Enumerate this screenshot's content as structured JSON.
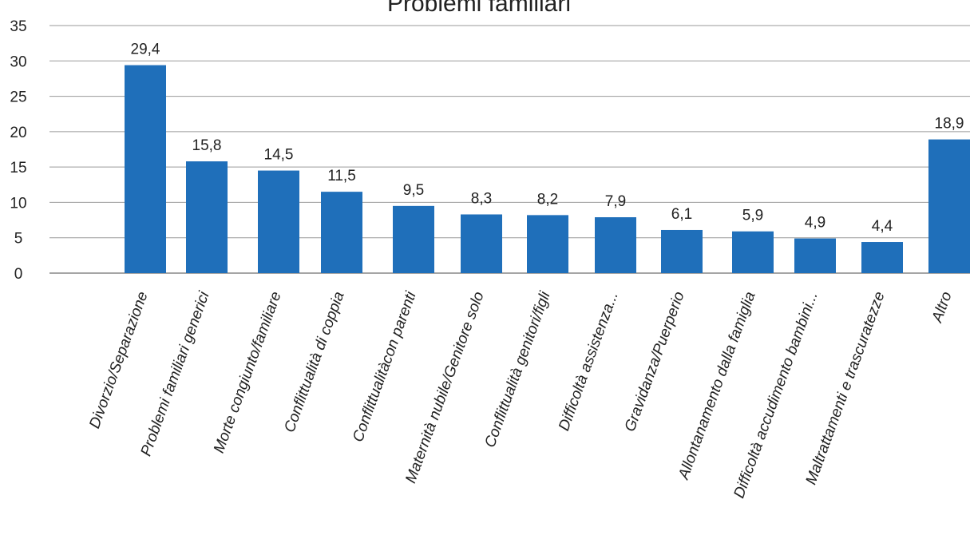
{
  "chart_data": {
    "type": "bar",
    "title": "Problemi familiari",
    "categories": [
      "Divorzio/Separazione",
      "Problemi familiari generici",
      "Morte congiunto/familiare",
      "Conflittualità di coppia",
      "Conflittualitàcon parenti",
      "Maternità nubile/Genitore solo",
      "Conflittualità genitori/figli",
      "Difficoltà assistenza...",
      "Gravidanza/Puerperio",
      "Allontanamento dalla famiglia",
      "Difficoltà accudimento bambini...",
      "Maltrattamenti e trascuratezze",
      "Altro"
    ],
    "values": [
      29.4,
      15.8,
      14.5,
      11.5,
      9.5,
      8.3,
      8.2,
      7.9,
      6.1,
      5.9,
      4.9,
      4.4,
      18.9
    ],
    "value_labels": [
      "29,4",
      "15,8",
      "14,5",
      "11,5",
      "9,5",
      "8,3",
      "8,2",
      "7,9",
      "6,1",
      "5,9",
      "4,9",
      "4,4",
      "18,9"
    ],
    "yticks": [
      "0",
      "5",
      "10",
      "15",
      "20",
      "25",
      "30",
      "35"
    ],
    "ylim": [
      0,
      35
    ],
    "grid": true,
    "legend": "none",
    "bar_color": "#1f6fba"
  }
}
